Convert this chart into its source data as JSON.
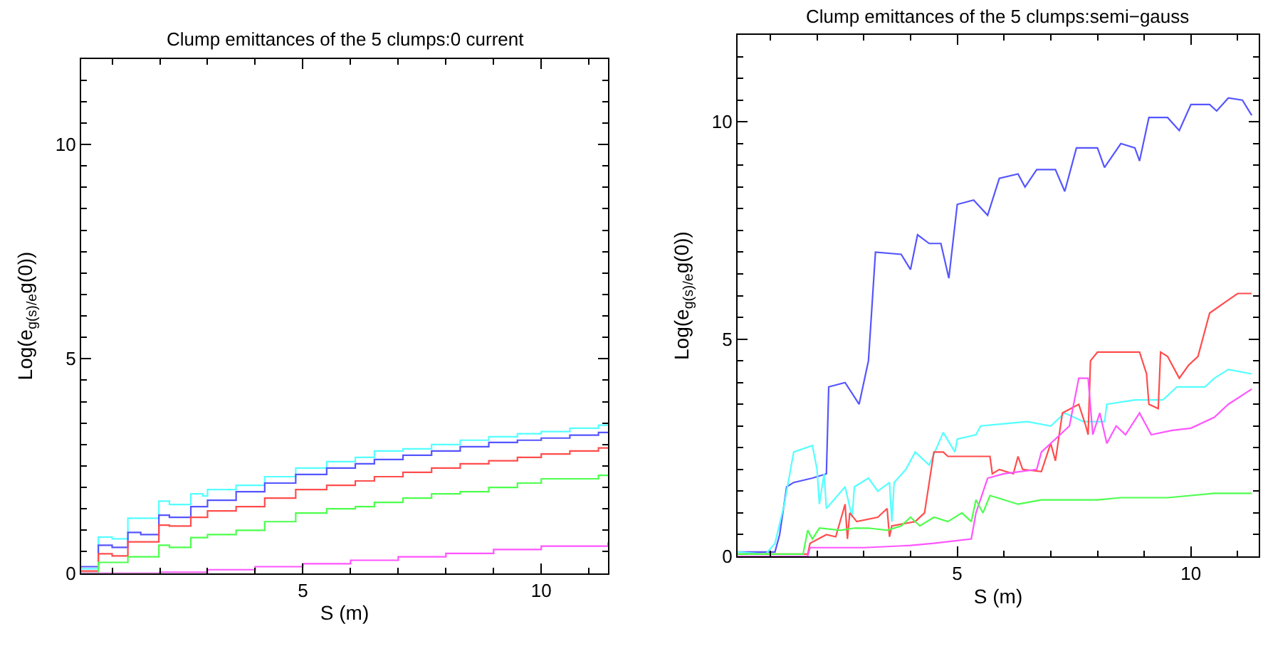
{
  "chart_data": [
    {
      "type": "step",
      "title": "Clump emittances of the 5 clumps:0 current",
      "xlabel": "S (m)",
      "ylabel": "Log(e$_{g(s)/e}$g(0))",
      "xlim": [
        0.35,
        11.4
      ],
      "ylim": [
        0,
        12
      ],
      "xticks": [
        5,
        10
      ],
      "yticks": [
        0,
        5,
        10
      ],
      "marker": "none",
      "line_style": "solid",
      "series": [
        {
          "color": "#55ffff",
          "x": [
            0.35,
            0.71,
            1.0,
            1.33,
            1.98,
            2.2,
            2.65,
            2.9,
            3.0,
            3.6,
            4.2,
            4.85,
            5.5,
            6.1,
            6.5,
            7.1,
            7.7,
            8.3,
            8.9,
            9.5,
            10.0,
            10.6,
            11.2,
            11.4
          ],
          "values": [
            0.1,
            0.84,
            0.8,
            1.28,
            1.68,
            1.6,
            1.85,
            1.8,
            1.95,
            2.05,
            2.25,
            2.45,
            2.6,
            2.7,
            2.85,
            2.9,
            3.0,
            3.1,
            3.18,
            3.25,
            3.3,
            3.38,
            3.45,
            3.45
          ]
        },
        {
          "color": "#5555ff",
          "x": [
            0.35,
            0.71,
            1.0,
            1.33,
            1.6,
            1.98,
            2.2,
            2.65,
            3.0,
            3.6,
            4.2,
            4.85,
            5.5,
            6.1,
            6.5,
            7.1,
            7.7,
            8.3,
            8.9,
            9.5,
            10.0,
            10.6,
            11.2,
            11.4
          ],
          "values": [
            0.15,
            0.65,
            0.6,
            0.95,
            0.9,
            1.35,
            1.3,
            1.55,
            1.7,
            1.9,
            2.1,
            2.3,
            2.45,
            2.55,
            2.65,
            2.75,
            2.85,
            2.95,
            3.05,
            3.1,
            3.15,
            3.22,
            3.28,
            3.28
          ]
        },
        {
          "color": "#ff4d4d",
          "x": [
            0.35,
            0.71,
            1.0,
            1.33,
            1.98,
            2.2,
            2.65,
            3.0,
            3.6,
            4.2,
            4.85,
            5.5,
            6.1,
            6.5,
            7.1,
            7.7,
            8.3,
            8.9,
            9.5,
            10.0,
            10.6,
            11.2,
            11.4
          ],
          "values": [
            0.05,
            0.45,
            0.4,
            0.73,
            1.12,
            1.1,
            1.3,
            1.45,
            1.55,
            1.75,
            1.95,
            2.05,
            2.15,
            2.25,
            2.35,
            2.45,
            2.55,
            2.62,
            2.7,
            2.78,
            2.85,
            2.92,
            2.92
          ]
        },
        {
          "color": "#4dff4d",
          "x": [
            0.35,
            0.71,
            1.33,
            1.98,
            2.2,
            2.65,
            3.0,
            3.6,
            4.2,
            4.85,
            5.5,
            6.1,
            6.5,
            7.1,
            7.7,
            8.3,
            8.9,
            9.5,
            10.0,
            11.2,
            11.4
          ],
          "values": [
            0.0,
            0.25,
            0.38,
            0.65,
            0.6,
            0.83,
            0.9,
            1.0,
            1.2,
            1.4,
            1.5,
            1.55,
            1.65,
            1.75,
            1.85,
            1.9,
            2.0,
            2.1,
            2.2,
            2.28,
            2.28
          ]
        },
        {
          "color": "#ff55ff",
          "x": [
            0.35,
            2.0,
            3.0,
            4.0,
            5.0,
            6.0,
            7.0,
            8.0,
            9.0,
            10.0,
            11.4
          ],
          "values": [
            0.0,
            0.02,
            0.08,
            0.15,
            0.22,
            0.3,
            0.38,
            0.46,
            0.55,
            0.63,
            0.72
          ]
        }
      ]
    },
    {
      "type": "line",
      "title": "Clump emittances of the 5 clumps:semi−gauss",
      "xlabel": "S (m)",
      "ylabel": "Log(e$_{g(s)/e}$g(0))",
      "xlim": [
        0.3,
        11.45
      ],
      "ylim": [
        0,
        12
      ],
      "xticks": [
        5,
        10
      ],
      "yticks": [
        0,
        5,
        10
      ],
      "marker": "none",
      "line_style": "solid",
      "series": [
        {
          "color": "#5555ff",
          "x": [
            0.3,
            1.1,
            1.2,
            1.35,
            1.5,
            1.9,
            2.2,
            2.25,
            2.6,
            2.9,
            3.1,
            3.25,
            3.8,
            4.0,
            4.15,
            4.4,
            4.65,
            4.82,
            5.0,
            5.35,
            5.65,
            5.9,
            6.3,
            6.45,
            6.7,
            7.1,
            7.3,
            7.55,
            8.0,
            8.15,
            8.5,
            8.8,
            8.9,
            9.1,
            9.5,
            9.75,
            10.0,
            10.4,
            10.55,
            10.8,
            11.1,
            11.3
          ],
          "values": [
            0.1,
            0.1,
            0.5,
            1.6,
            1.7,
            1.8,
            1.9,
            3.9,
            4.0,
            3.5,
            4.5,
            7.0,
            6.95,
            6.6,
            7.4,
            7.2,
            7.2,
            6.4,
            8.1,
            8.2,
            7.85,
            8.7,
            8.8,
            8.5,
            8.9,
            8.9,
            8.4,
            9.4,
            9.4,
            8.95,
            9.5,
            9.4,
            9.1,
            10.1,
            10.1,
            9.8,
            10.4,
            10.4,
            10.25,
            10.55,
            10.5,
            10.15
          ]
        },
        {
          "color": "#55ffff",
          "x": [
            0.3,
            0.9,
            1.1,
            1.3,
            1.5,
            1.9,
            2.0,
            2.05,
            2.15,
            2.2,
            2.4,
            2.6,
            2.75,
            2.8,
            3.1,
            3.3,
            3.55,
            3.6,
            3.65,
            3.9,
            4.1,
            4.4,
            4.7,
            4.95,
            5.0,
            5.4,
            5.5,
            6.0,
            6.5,
            7.0,
            7.3,
            7.7,
            8.15,
            8.2,
            8.8,
            9.1,
            9.4,
            9.7,
            10.3,
            10.5,
            10.8,
            11.3
          ],
          "values": [
            0.1,
            0.05,
            0.3,
            1.2,
            2.4,
            2.55,
            2.0,
            1.2,
            1.9,
            1.1,
            1.35,
            1.6,
            0.9,
            1.6,
            1.8,
            1.5,
            1.7,
            0.8,
            1.7,
            2.0,
            2.4,
            2.1,
            2.85,
            2.4,
            2.7,
            2.8,
            3.0,
            3.05,
            3.1,
            3.0,
            3.3,
            3.1,
            3.1,
            3.5,
            3.6,
            3.6,
            3.6,
            3.9,
            3.9,
            4.1,
            4.3,
            4.2
          ]
        },
        {
          "color": "#ff4d4d",
          "x": [
            0.3,
            1.8,
            1.85,
            2.2,
            2.4,
            2.6,
            2.65,
            2.7,
            2.85,
            3.3,
            3.5,
            3.55,
            3.6,
            4.1,
            4.3,
            4.5,
            4.7,
            4.8,
            5.7,
            5.75,
            5.9,
            6.2,
            6.3,
            6.4,
            6.8,
            7.0,
            7.1,
            7.25,
            7.6,
            7.75,
            7.8,
            7.85,
            8.0,
            8.9,
            9.05,
            9.1,
            9.3,
            9.35,
            9.5,
            9.75,
            9.95,
            10.15,
            10.4,
            10.8,
            11.0,
            11.3
          ],
          "values": [
            0.05,
            0.05,
            0.3,
            0.5,
            0.45,
            1.2,
            0.4,
            1.0,
            0.8,
            0.9,
            1.1,
            0.45,
            0.7,
            0.8,
            1.0,
            2.4,
            2.4,
            2.3,
            2.3,
            1.9,
            2.0,
            1.9,
            2.3,
            2.0,
            1.95,
            2.6,
            2.2,
            3.3,
            3.5,
            3.0,
            2.8,
            4.5,
            4.7,
            4.7,
            4.2,
            3.5,
            3.4,
            4.7,
            4.6,
            4.1,
            4.4,
            4.6,
            5.6,
            5.9,
            6.05,
            6.05
          ]
        },
        {
          "color": "#ff55ff",
          "x": [
            0.3,
            1.8,
            1.85,
            2.4,
            3.0,
            4.0,
            4.5,
            5.3,
            5.4,
            5.65,
            6.0,
            6.7,
            6.8,
            7.2,
            7.4,
            7.6,
            7.8,
            7.9,
            8.05,
            8.2,
            8.4,
            8.6,
            8.9,
            9.15,
            9.6,
            10.0,
            10.5,
            10.8,
            11.3
          ],
          "values": [
            0.0,
            0.0,
            0.2,
            0.2,
            0.2,
            0.25,
            0.3,
            0.4,
            1.0,
            1.8,
            1.9,
            2.0,
            2.4,
            2.8,
            3.0,
            4.1,
            4.1,
            2.8,
            3.3,
            2.6,
            3.0,
            2.8,
            3.3,
            2.8,
            2.9,
            2.95,
            3.2,
            3.5,
            3.85
          ]
        },
        {
          "color": "#4dff4d",
          "x": [
            0.3,
            1.7,
            1.8,
            1.9,
            2.05,
            2.5,
            2.8,
            3.1,
            3.5,
            3.8,
            4.0,
            4.2,
            4.5,
            4.8,
            5.1,
            5.3,
            5.4,
            5.55,
            5.7,
            5.85,
            6.3,
            6.8,
            7.5,
            8.0,
            8.5,
            9.0,
            9.5,
            10.0,
            10.5,
            11.3
          ],
          "values": [
            0.05,
            0.05,
            0.6,
            0.4,
            0.65,
            0.6,
            0.65,
            0.65,
            0.6,
            0.7,
            0.9,
            0.7,
            0.9,
            0.8,
            1.0,
            0.8,
            1.3,
            1.0,
            1.4,
            1.35,
            1.2,
            1.3,
            1.3,
            1.3,
            1.35,
            1.35,
            1.35,
            1.4,
            1.45,
            1.45
          ]
        }
      ]
    }
  ]
}
